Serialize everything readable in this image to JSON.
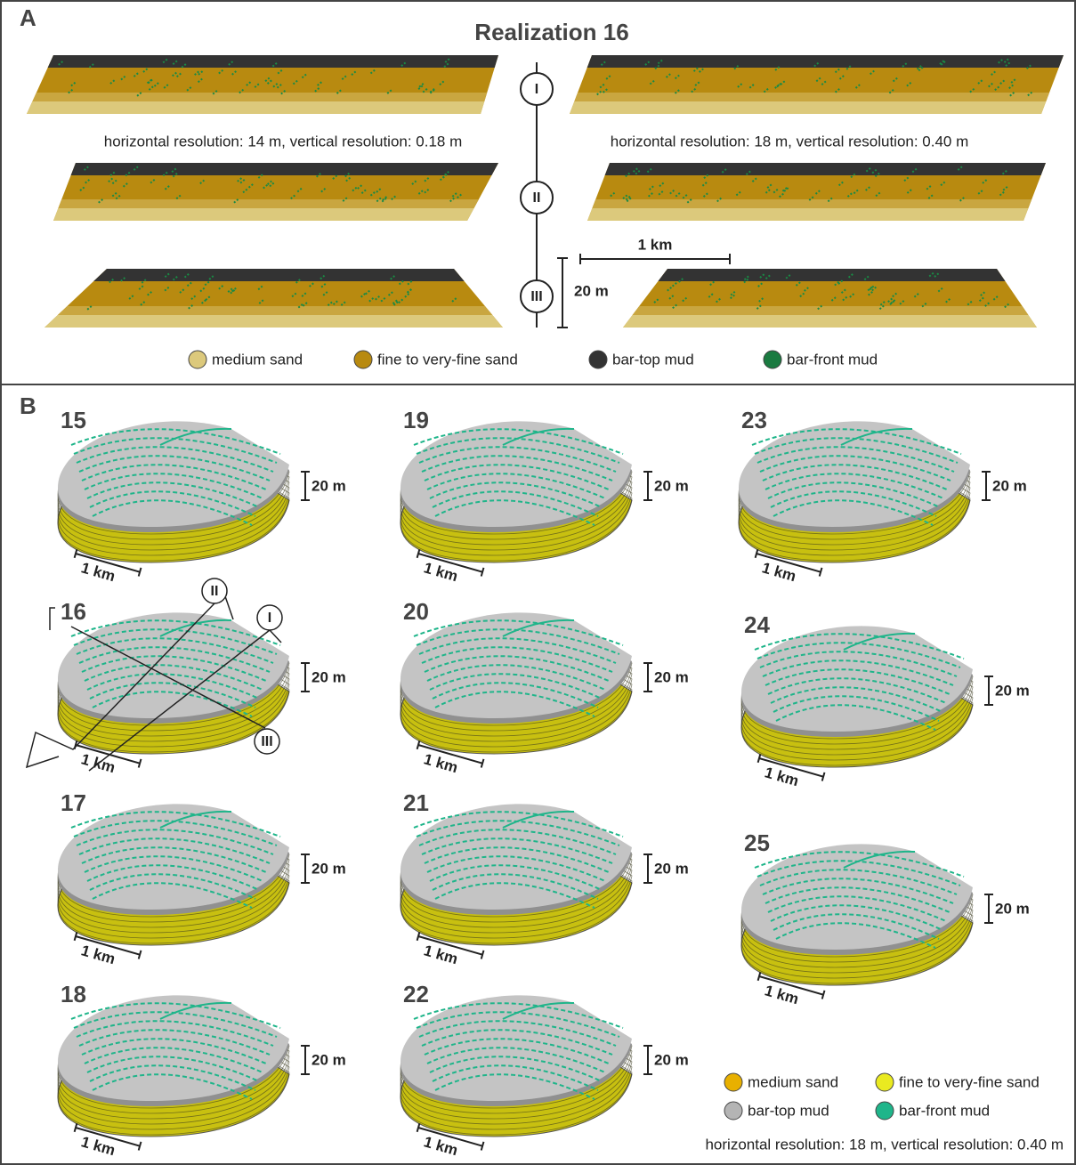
{
  "panel_a": {
    "label": "A",
    "title": "Realization 16",
    "sections": [
      "I",
      "II",
      "III"
    ],
    "resolution_left": "horizontal resolution: 14 m, vertical resolution: 0.18 m",
    "resolution_right": "horizontal resolution: 18 m, vertical resolution: 0.40 m",
    "scale_h": "1 km",
    "scale_v": "20 m",
    "legend": [
      "medium sand",
      "fine to very-fine sand",
      "bar-top mud",
      "bar-front mud"
    ]
  },
  "panel_b": {
    "label": "B",
    "realizations": [
      {
        "number": "15",
        "scale_v": "20 m",
        "scale_h": "1 km"
      },
      {
        "number": "16",
        "scale_v": "20 m",
        "scale_h": "1 km"
      },
      {
        "number": "17",
        "scale_v": "20 m",
        "scale_h": "1 km"
      },
      {
        "number": "18",
        "scale_v": "20 m",
        "scale_h": "1 km"
      },
      {
        "number": "19",
        "scale_v": "20 m",
        "scale_h": "1 km"
      },
      {
        "number": "20",
        "scale_v": "20 m",
        "scale_h": "1 km"
      },
      {
        "number": "21",
        "scale_v": "20 m",
        "scale_h": "1 km"
      },
      {
        "number": "22",
        "scale_v": "20 m",
        "scale_h": "1 km"
      },
      {
        "number": "23",
        "scale_v": "20 m",
        "scale_h": "1 km"
      },
      {
        "number": "24",
        "scale_v": "20 m",
        "scale_h": "1 km"
      },
      {
        "number": "25",
        "scale_v": "20 m",
        "scale_h": "1 km"
      }
    ],
    "section_labels": [
      "II",
      "I",
      "III"
    ],
    "legend": [
      "medium sand",
      "fine to very-fine sand",
      "bar-top mud",
      "bar-front mud"
    ],
    "resolution": "horizontal resolution: 18 m, vertical resolution: 0.40 m"
  }
}
